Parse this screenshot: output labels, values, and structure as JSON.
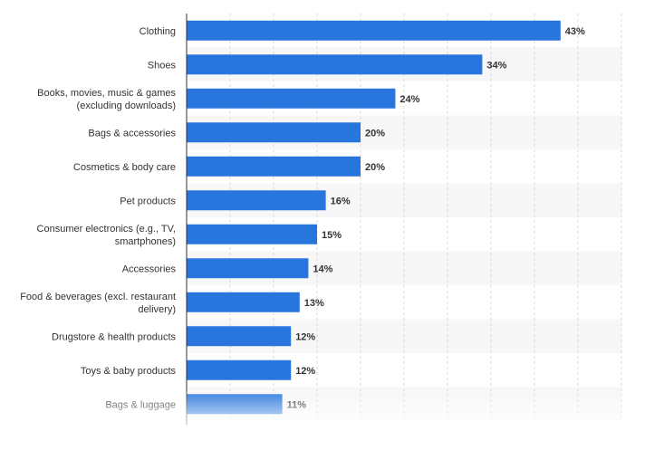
{
  "chart_data": {
    "type": "bar",
    "orientation": "horizontal",
    "categories": [
      [
        "Clothing"
      ],
      [
        "Shoes"
      ],
      [
        "Books, movies, music & games",
        "(excluding downloads)"
      ],
      [
        "Bags & accessories"
      ],
      [
        "Cosmetics & body care"
      ],
      [
        "Pet products"
      ],
      [
        "Consumer electronics (e.g., TV,",
        "smartphones)"
      ],
      [
        "Accessories"
      ],
      [
        "Food & beverages (excl. restaurant",
        "delivery)"
      ],
      [
        "Drugstore & health products"
      ],
      [
        "Toys & baby products"
      ],
      [
        "Bags & luggage"
      ]
    ],
    "values": [
      43,
      34,
      24,
      20,
      20,
      16,
      15,
      14,
      13,
      12,
      12,
      11
    ],
    "value_suffix": "%",
    "xlim": [
      0,
      50
    ],
    "grid": true,
    "gridline_style": "dashed vertical",
    "legend": "none",
    "colors": {
      "bar": "#2876dd",
      "band": "#f7f7f7",
      "grid": "#d7d7d7",
      "axis": "#333333",
      "text": "#333333"
    }
  }
}
